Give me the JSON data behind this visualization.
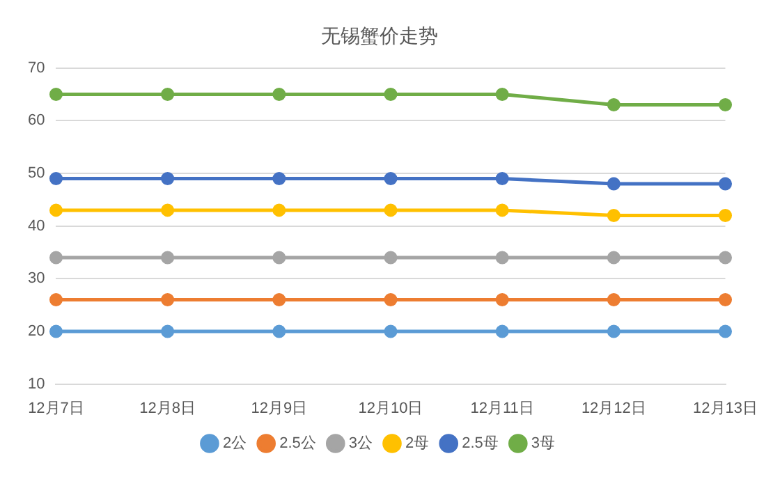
{
  "chart_data": {
    "type": "line",
    "title": "无锡蟹价走势",
    "categories": [
      "12月7日",
      "12月8日",
      "12月9日",
      "12月10日",
      "12月11日",
      "12月12日",
      "12月13日"
    ],
    "series": [
      {
        "name": "2公",
        "color": "#5b9bd5",
        "values": [
          20,
          20,
          20,
          20,
          20,
          20,
          20
        ]
      },
      {
        "name": "2.5公",
        "color": "#ed7d31",
        "values": [
          26,
          26,
          26,
          26,
          26,
          26,
          26
        ]
      },
      {
        "name": "3公",
        "color": "#a5a5a5",
        "values": [
          34,
          34,
          34,
          34,
          34,
          34,
          34
        ]
      },
      {
        "name": "2母",
        "color": "#ffc000",
        "values": [
          43,
          43,
          43,
          43,
          43,
          42,
          42
        ]
      },
      {
        "name": "2.5母",
        "color": "#4472c4",
        "values": [
          49,
          49,
          49,
          49,
          49,
          48,
          48
        ]
      },
      {
        "name": "3母",
        "color": "#70ad47",
        "values": [
          65,
          65,
          65,
          65,
          65,
          63,
          63
        ]
      }
    ],
    "ylim": [
      10,
      70
    ],
    "yticks": [
      10,
      20,
      30,
      40,
      50,
      60,
      70
    ],
    "grid": "y",
    "legend": "bottom",
    "marker": "circle",
    "line_style": "solid"
  }
}
